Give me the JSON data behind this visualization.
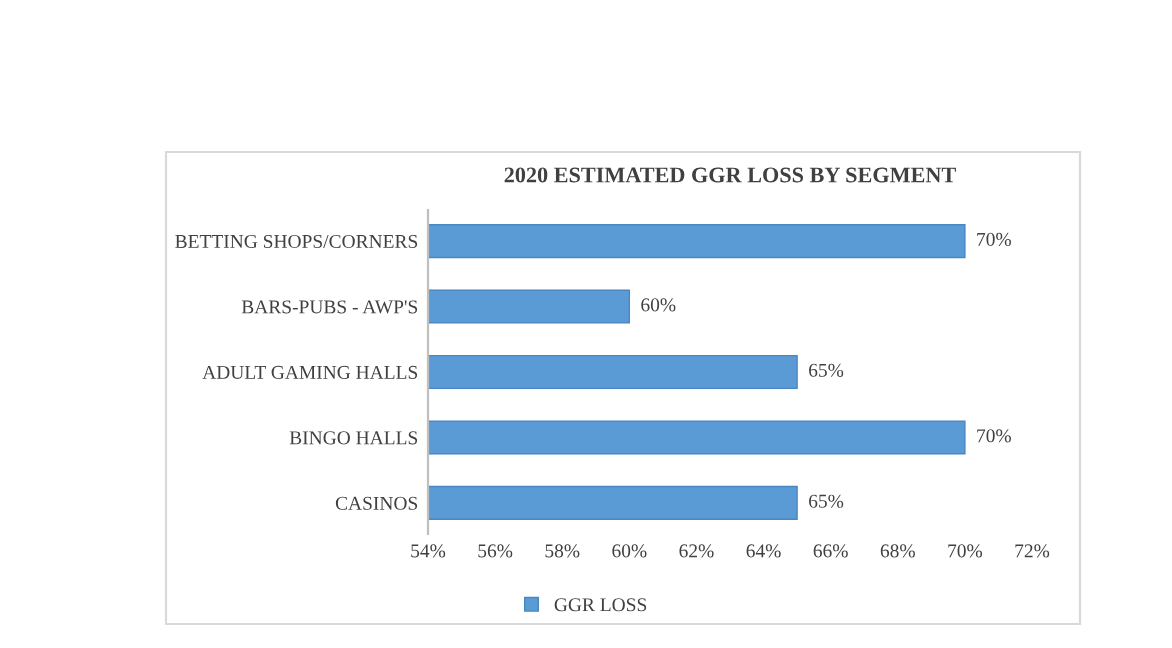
{
  "chart_data": {
    "type": "bar",
    "orientation": "horizontal",
    "title": "2020 ESTIMATED GGR LOSS BY SEGMENT",
    "categories": [
      "BETTING SHOPS/CORNERS",
      "BARS-PUBS - AWP'S",
      "ADULT GAMING HALLS",
      "BINGO HALLS",
      "CASINOS"
    ],
    "series": [
      {
        "name": "GGR LOSS",
        "color": "#5b9bd5",
        "values": [
          70,
          60,
          65,
          70,
          65
        ],
        "value_labels": [
          "70%",
          "60%",
          "65%",
          "70%",
          "65%"
        ]
      }
    ],
    "xlim": [
      54,
      72
    ],
    "xticks": [
      {
        "value": 54,
        "label": "54%"
      },
      {
        "value": 56,
        "label": "56%"
      },
      {
        "value": 58,
        "label": "58%"
      },
      {
        "value": 60,
        "label": "60%"
      },
      {
        "value": 62,
        "label": "62%"
      },
      {
        "value": 64,
        "label": "64%"
      },
      {
        "value": 66,
        "label": "66%"
      },
      {
        "value": 68,
        "label": "68%"
      },
      {
        "value": 70,
        "label": "70%"
      },
      {
        "value": 72,
        "label": "72%"
      }
    ],
    "grid": false,
    "legend": "bottom"
  }
}
